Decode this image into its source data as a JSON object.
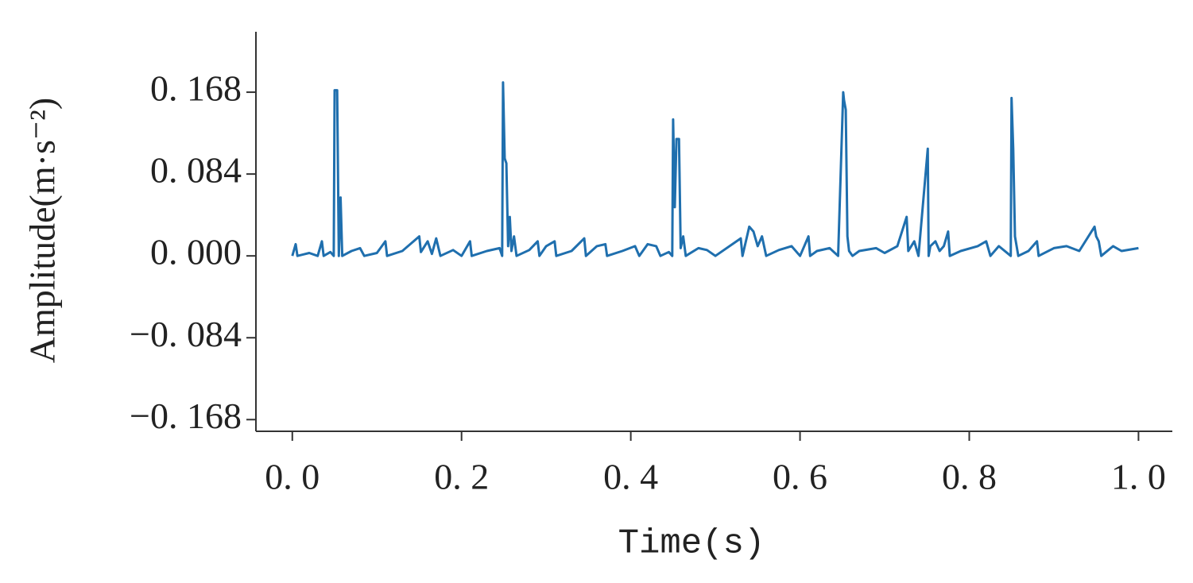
{
  "chart_data": {
    "type": "line",
    "xlabel": "Time(s)",
    "ylabel": "Amplitude(m·s⁻²)",
    "xlim": [
      -0.043,
      1.04
    ],
    "ylim": [
      -0.18,
      0.23
    ],
    "xticks": [
      {
        "value": 0.0,
        "label": "0. 0"
      },
      {
        "value": 0.2,
        "label": "0. 2"
      },
      {
        "value": 0.4,
        "label": "0. 4"
      },
      {
        "value": 0.6,
        "label": "0. 6"
      },
      {
        "value": 0.8,
        "label": "0. 8"
      },
      {
        "value": 1.0,
        "label": "1. 0"
      }
    ],
    "yticks": [
      {
        "value": 0.168,
        "label": "0. 168"
      },
      {
        "value": 0.084,
        "label": "0. 084"
      },
      {
        "value": 0.0,
        "label": "0. 000"
      },
      {
        "value": -0.084,
        "label": "−0. 084"
      },
      {
        "value": -0.168,
        "label": "−0. 168"
      }
    ],
    "x": [
      0,
      0.004,
      0.006,
      0.02,
      0.03,
      0.035,
      0.037,
      0.045,
      0.049,
      0.05,
      0.053,
      0.055,
      0.057,
      0.059,
      0.07,
      0.08,
      0.085,
      0.1,
      0.11,
      0.112,
      0.13,
      0.15,
      0.152,
      0.16,
      0.165,
      0.17,
      0.175,
      0.19,
      0.2,
      0.21,
      0.212,
      0.23,
      0.245,
      0.248,
      0.249,
      0.251,
      0.253,
      0.255,
      0.257,
      0.259,
      0.262,
      0.265,
      0.28,
      0.29,
      0.292,
      0.3,
      0.31,
      0.312,
      0.33,
      0.345,
      0.347,
      0.36,
      0.37,
      0.372,
      0.39,
      0.405,
      0.41,
      0.42,
      0.43,
      0.435,
      0.445,
      0.449,
      0.45,
      0.452,
      0.454,
      0.457,
      0.459,
      0.462,
      0.465,
      0.48,
      0.49,
      0.5,
      0.53,
      0.532,
      0.54,
      0.545,
      0.55,
      0.555,
      0.56,
      0.575,
      0.59,
      0.6,
      0.61,
      0.612,
      0.62,
      0.635,
      0.645,
      0.651,
      0.652,
      0.654,
      0.656,
      0.658,
      0.662,
      0.67,
      0.69,
      0.7,
      0.715,
      0.726,
      0.728,
      0.735,
      0.74,
      0.751,
      0.752,
      0.754,
      0.76,
      0.765,
      0.77,
      0.775,
      0.777,
      0.79,
      0.81,
      0.82,
      0.825,
      0.835,
      0.849,
      0.85,
      0.852,
      0.854,
      0.858,
      0.87,
      0.88,
      0.882,
      0.9,
      0.915,
      0.93,
      0.948,
      0.95,
      0.953,
      0.956,
      0.97,
      0.98,
      1.0
    ],
    "series": [
      {
        "color": "#1f6fae",
        "values": [
          0,
          0.012,
          0,
          0.003,
          0,
          0.015,
          0,
          0.004,
          0,
          0.17,
          0.17,
          0,
          0.06,
          0,
          0.005,
          0.008,
          0,
          0.003,
          0.015,
          0,
          0.005,
          0.02,
          0.004,
          0.015,
          0.002,
          0.018,
          0,
          0.006,
          0,
          0.015,
          0,
          0.005,
          0.008,
          0,
          0.178,
          0.1,
          0.095,
          0.01,
          0.04,
          0.005,
          0.02,
          0,
          0.006,
          0.015,
          0,
          0.01,
          0.015,
          0,
          0.005,
          0.018,
          0,
          0.01,
          0.012,
          0,
          0.005,
          0.01,
          0,
          0.012,
          0.01,
          0,
          0.004,
          0,
          0.14,
          0.05,
          0.12,
          0.12,
          0.008,
          0.02,
          0,
          0.008,
          0.006,
          0,
          0.018,
          0,
          0.03,
          0.025,
          0.01,
          0.02,
          0,
          0.006,
          0.01,
          0,
          0.02,
          0,
          0.005,
          0.008,
          0,
          0.168,
          0.16,
          0.15,
          0.02,
          0.005,
          0,
          0.005,
          0.008,
          0.003,
          0.01,
          0.04,
          0.005,
          0.015,
          0,
          0.11,
          0,
          0.01,
          0.015,
          0.005,
          0.01,
          0.025,
          0,
          0.005,
          0.01,
          0.015,
          0,
          0.01,
          0,
          0.162,
          0.11,
          0.02,
          0,
          0.005,
          0.015,
          0,
          0.008,
          0.01,
          0.005,
          0.03,
          0.02,
          0.015,
          0,
          0.01,
          0.005,
          0.008
        ]
      }
    ]
  }
}
